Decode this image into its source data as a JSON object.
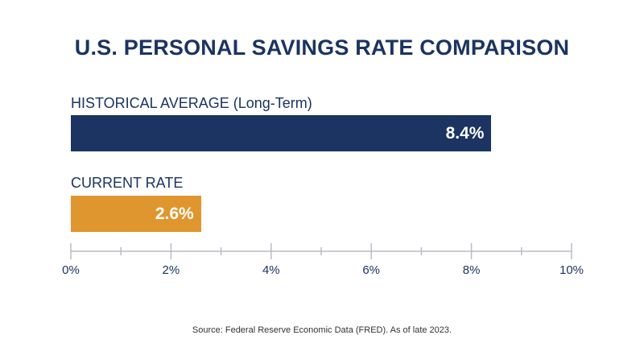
{
  "chart_data": {
    "type": "bar",
    "orientation": "horizontal",
    "title": "U.S. PERSONAL SAVINGS RATE COMPARISON",
    "categories": [
      "HISTORICAL AVERAGE (Long-Term)",
      "CURRENT RATE"
    ],
    "values": [
      8.4,
      2.6
    ],
    "value_labels": [
      "8.4%",
      "2.6%"
    ],
    "colors": [
      "#1b3461",
      "#e0962e"
    ],
    "xlim": [
      0,
      10
    ],
    "major_ticks": [
      0,
      2,
      4,
      6,
      8,
      10
    ],
    "tick_labels": [
      "0%",
      "2%",
      "4%",
      "6%",
      "8%",
      "10%"
    ],
    "minor_ticks": [
      1,
      3,
      5,
      7,
      9
    ],
    "grid": false,
    "xlabel": "",
    "ylabel": ""
  },
  "source": "Source: Federal Reserve Economic Data (FRED). As of late 2023."
}
